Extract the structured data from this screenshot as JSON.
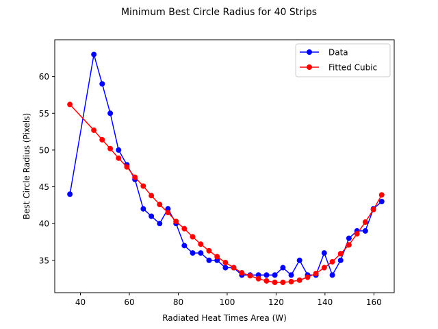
{
  "chart_data": {
    "type": "line",
    "title": "Minimum Best Circle Radius for 40 Strips",
    "xlabel": "Radiated Heat Times Area (W)",
    "ylabel": "Best Circle Radius (Pixels)",
    "xlim": [
      29.5,
      168.3
    ],
    "ylim": [
      30.6,
      65.0
    ],
    "x_ticks": [
      40,
      60,
      80,
      100,
      120,
      140,
      160
    ],
    "y_ticks": [
      35,
      40,
      45,
      50,
      55,
      60
    ],
    "grid": false,
    "legend_position": "upper right",
    "series": [
      {
        "name": "Data",
        "color": "#0000ff",
        "x": [
          35.7,
          45.5,
          48.9,
          52.2,
          55.6,
          59.0,
          62.3,
          65.7,
          69.0,
          72.4,
          75.8,
          79.1,
          82.5,
          85.9,
          89.2,
          92.6,
          95.9,
          99.3,
          102.7,
          106.0,
          109.4,
          112.8,
          116.1,
          119.5,
          122.8,
          126.2,
          129.6,
          132.9,
          136.3,
          139.7,
          143.0,
          146.4,
          149.8,
          153.1,
          156.5,
          159.8,
          163.2
        ],
        "y": [
          44,
          63,
          59,
          55,
          50,
          48,
          46,
          42,
          41,
          40,
          42,
          40,
          37,
          36,
          36,
          35,
          35,
          34,
          34,
          33,
          33,
          33,
          33,
          33,
          34,
          33,
          35,
          33,
          33,
          36,
          33,
          35,
          38,
          39,
          39,
          42,
          43
        ]
      },
      {
        "name": "Fitted Cubic",
        "color": "#ff0000",
        "x": [
          35.7,
          45.5,
          48.9,
          52.2,
          55.6,
          59.0,
          62.3,
          65.7,
          69.0,
          72.4,
          75.8,
          79.1,
          82.5,
          85.9,
          89.2,
          92.6,
          95.9,
          99.3,
          102.7,
          106.0,
          109.4,
          112.8,
          116.1,
          119.5,
          122.8,
          126.2,
          129.6,
          132.9,
          136.3,
          139.7,
          143.0,
          146.4,
          149.8,
          153.1,
          156.5,
          159.8,
          163.2
        ],
        "y": [
          56.2,
          52.7,
          51.4,
          50.2,
          48.9,
          47.7,
          46.3,
          45.1,
          43.8,
          42.6,
          41.5,
          40.3,
          39.3,
          38.2,
          37.2,
          36.3,
          35.5,
          34.7,
          34.0,
          33.3,
          32.9,
          32.5,
          32.2,
          32.0,
          32.0,
          32.1,
          32.3,
          32.7,
          33.2,
          34.0,
          34.8,
          35.9,
          37.1,
          38.6,
          40.2,
          41.9,
          43.9
        ]
      }
    ]
  }
}
